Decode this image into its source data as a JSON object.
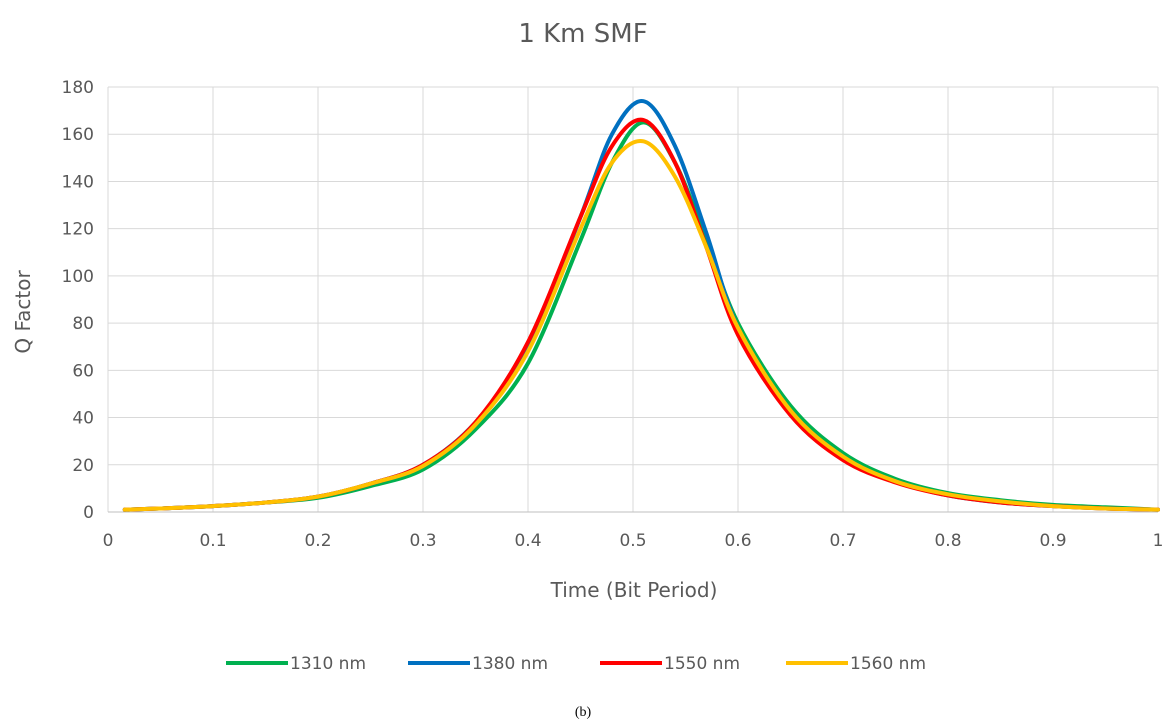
{
  "chart_data": {
    "type": "line",
    "title": "1 Km SMF",
    "xlabel": "Time (Bit Period)",
    "ylabel": "Q Factor",
    "xlim": [
      0,
      1
    ],
    "ylim": [
      0,
      180
    ],
    "x_ticks": [
      "0",
      "0.1",
      "0.2",
      "0.3",
      "0.4",
      "0.5",
      "0.6",
      "0.7",
      "0.8",
      "0.9",
      "1"
    ],
    "y_ticks": [
      "0",
      "20",
      "40",
      "60",
      "80",
      "100",
      "120",
      "140",
      "160",
      "180"
    ],
    "grid": true,
    "legend_position": "bottom",
    "x": [
      0.016,
      0.05,
      0.1,
      0.15,
      0.2,
      0.25,
      0.3,
      0.35,
      0.4,
      0.45,
      0.48,
      0.51,
      0.54,
      0.57,
      0.6,
      0.65,
      0.7,
      0.75,
      0.8,
      0.85,
      0.9,
      0.95,
      1.0
    ],
    "series": [
      {
        "name": "1310 nm",
        "color": "#00b050",
        "values": [
          1.0,
          1.5,
          2.5,
          4.0,
          6.0,
          11.0,
          18.0,
          35.0,
          63.0,
          115.0,
          148.0,
          165.0,
          148.0,
          115.0,
          80.0,
          45.0,
          25.0,
          14.0,
          8.0,
          5.0,
          3.0,
          2.0,
          1.0
        ]
      },
      {
        "name": "1380 nm",
        "color": "#0070c0",
        "values": [
          1.0,
          1.5,
          2.5,
          4.0,
          6.5,
          12.0,
          20.0,
          38.0,
          70.0,
          125.0,
          160.0,
          174.0,
          155.0,
          118.0,
          78.0,
          42.0,
          23.0,
          13.0,
          7.0,
          4.0,
          2.5,
          1.5,
          1.0
        ]
      },
      {
        "name": "1550 nm",
        "color": "#ff0000",
        "values": [
          1.0,
          1.5,
          2.5,
          4.0,
          6.5,
          12.0,
          20.0,
          38.0,
          72.0,
          125.0,
          155.0,
          166.0,
          148.0,
          112.0,
          75.0,
          41.0,
          22.0,
          12.5,
          7.0,
          4.0,
          2.5,
          1.5,
          1.0
        ]
      },
      {
        "name": "1560 nm",
        "color": "#ffc000",
        "values": [
          1.0,
          1.5,
          2.5,
          4.0,
          6.5,
          12.0,
          19.5,
          37.0,
          68.0,
          120.0,
          148.0,
          157.0,
          142.0,
          112.0,
          78.0,
          43.0,
          23.5,
          13.0,
          7.5,
          4.5,
          2.5,
          1.5,
          1.0
        ]
      }
    ]
  },
  "caption": "(b)"
}
